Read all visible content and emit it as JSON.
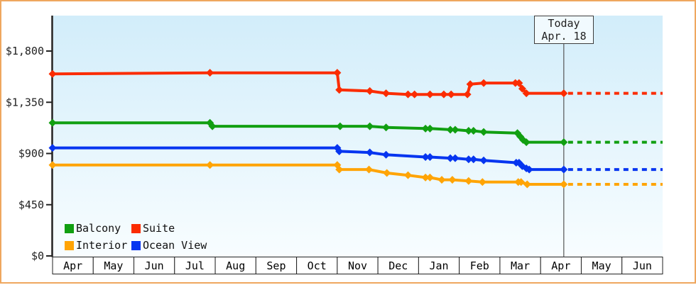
{
  "window": {
    "frame_border_color": "#efa75f"
  },
  "today_flag": {
    "line1": "Today",
    "line2": "Apr. 18"
  },
  "legend": {
    "items": [
      {
        "label": "Balcony",
        "color": "#119f11"
      },
      {
        "label": "Suite",
        "color": "#fb2c01"
      },
      {
        "label": "Interior",
        "color": "#ffa405"
      },
      {
        "label": "Ocean View",
        "color": "#0635f0"
      }
    ]
  },
  "chart_data": {
    "type": "line",
    "description": "Cruise cabin price history by category with dashed projection after today marker",
    "grid": false,
    "legend_position": "bottom-left inside plot",
    "colors": {
      "plot_bg_top": "#d2edfa",
      "plot_bg_bottom": "#f8fdff",
      "axis": "#222222",
      "today_line": "#555555",
      "month_band_bg": "#ffffff",
      "month_band_border": "#222222",
      "tick_text": "#222222"
    },
    "x_axis": {
      "tick_labels": [
        "Apr",
        "May",
        "Jun",
        "Jul",
        "Aug",
        "Sep",
        "Oct",
        "Nov",
        "Dec",
        "Jan",
        "Feb",
        "Mar",
        "Apr",
        "May",
        "Jun"
      ],
      "months_shown": 15
    },
    "y_axis": {
      "tick_labels": [
        "$0",
        "$450",
        "$900",
        "$1,350",
        "$1,800"
      ],
      "tick_values": [
        0,
        450,
        900,
        1350,
        1800
      ],
      "ylim": [
        0,
        2110
      ],
      "unit": "USD"
    },
    "today": {
      "label": "Apr. 18",
      "t": 12.57
    },
    "projection_end_t": 15,
    "series": [
      {
        "name": "Suite",
        "color": "#fb2c01",
        "today_price": 1429,
        "points": [
          {
            "t": 0,
            "date": "Apr 1",
            "price": 1599
          },
          {
            "t": 3.87,
            "date": "Jul 27",
            "price": 1609
          },
          {
            "t": 7.0,
            "date": "Nov 1",
            "price": 1609
          },
          {
            "t": 7.05,
            "date": "Nov 2",
            "price": 1459
          },
          {
            "t": 7.8,
            "date": "Nov 25",
            "price": 1449
          },
          {
            "t": 8.2,
            "date": "Dec 7",
            "price": 1429
          },
          {
            "t": 8.74,
            "date": "Dec 23",
            "price": 1419
          },
          {
            "t": 8.9,
            "date": "Dec 28",
            "price": 1419
          },
          {
            "t": 9.28,
            "date": "Jan 9",
            "price": 1419
          },
          {
            "t": 9.62,
            "date": "Jan 19",
            "price": 1419
          },
          {
            "t": 9.8,
            "date": "Jan 25",
            "price": 1419
          },
          {
            "t": 10.2,
            "date": "Feb 7",
            "price": 1419
          },
          {
            "t": 10.27,
            "date": "Feb 9",
            "price": 1509
          },
          {
            "t": 10.6,
            "date": "Feb 19",
            "price": 1519
          },
          {
            "t": 11.38,
            "date": "Mar 12",
            "price": 1519
          },
          {
            "t": 11.47,
            "date": "Mar 15",
            "price": 1519
          },
          {
            "t": 11.55,
            "date": "Mar 17",
            "price": 1469
          },
          {
            "t": 11.65,
            "date": "Mar 20",
            "price": 1429
          },
          {
            "t": 12.57,
            "date": "Apr 18",
            "price": 1429
          }
        ]
      },
      {
        "name": "Balcony",
        "color": "#119f11",
        "today_price": 999,
        "points": [
          {
            "t": 0,
            "date": "Apr 1",
            "price": 1169
          },
          {
            "t": 3.87,
            "date": "Jul 27",
            "price": 1169
          },
          {
            "t": 3.93,
            "date": "Jul 29",
            "price": 1139
          },
          {
            "t": 7.07,
            "date": "Nov 2",
            "price": 1139
          },
          {
            "t": 7.8,
            "date": "Nov 25",
            "price": 1139
          },
          {
            "t": 8.2,
            "date": "Dec 7",
            "price": 1129
          },
          {
            "t": 9.17,
            "date": "Jan 6",
            "price": 1119
          },
          {
            "t": 9.28,
            "date": "Jan 9",
            "price": 1119
          },
          {
            "t": 9.78,
            "date": "Jan 24",
            "price": 1109
          },
          {
            "t": 9.9,
            "date": "Jan 28",
            "price": 1109
          },
          {
            "t": 10.23,
            "date": "Feb 8",
            "price": 1099
          },
          {
            "t": 10.35,
            "date": "Feb 11",
            "price": 1099
          },
          {
            "t": 10.6,
            "date": "Feb 19",
            "price": 1089
          },
          {
            "t": 11.43,
            "date": "Mar 14",
            "price": 1079
          },
          {
            "t": 11.5,
            "date": "Mar 16",
            "price": 1049
          },
          {
            "t": 11.57,
            "date": "Mar 18",
            "price": 1019
          },
          {
            "t": 11.65,
            "date": "Mar 20",
            "price": 999
          },
          {
            "t": 12.57,
            "date": "Apr 18",
            "price": 999
          }
        ]
      },
      {
        "name": "Ocean View",
        "color": "#0635f0",
        "today_price": 759,
        "points": [
          {
            "t": 0,
            "date": "Apr 1",
            "price": 949
          },
          {
            "t": 7.0,
            "date": "Nov 1",
            "price": 949
          },
          {
            "t": 7.05,
            "date": "Nov 2",
            "price": 919
          },
          {
            "t": 7.8,
            "date": "Nov 25",
            "price": 909
          },
          {
            "t": 8.2,
            "date": "Dec 7",
            "price": 889
          },
          {
            "t": 9.17,
            "date": "Jan 6",
            "price": 869
          },
          {
            "t": 9.28,
            "date": "Jan 9",
            "price": 869
          },
          {
            "t": 9.78,
            "date": "Jan 24",
            "price": 859
          },
          {
            "t": 9.9,
            "date": "Jan 28",
            "price": 859
          },
          {
            "t": 10.23,
            "date": "Feb 8",
            "price": 849
          },
          {
            "t": 10.35,
            "date": "Feb 11",
            "price": 849
          },
          {
            "t": 10.6,
            "date": "Feb 19",
            "price": 839
          },
          {
            "t": 11.4,
            "date": "Mar 13",
            "price": 819
          },
          {
            "t": 11.47,
            "date": "Mar 15",
            "price": 819
          },
          {
            "t": 11.55,
            "date": "Mar 17",
            "price": 789
          },
          {
            "t": 11.65,
            "date": "Mar 20",
            "price": 769
          },
          {
            "t": 11.72,
            "date": "Mar 22",
            "price": 759
          },
          {
            "t": 12.57,
            "date": "Apr 18",
            "price": 759
          }
        ]
      },
      {
        "name": "Interior",
        "color": "#ffa405",
        "today_price": 629,
        "points": [
          {
            "t": 0,
            "date": "Apr 1",
            "price": 799
          },
          {
            "t": 3.87,
            "date": "Jul 27",
            "price": 799
          },
          {
            "t": 7.0,
            "date": "Nov 1",
            "price": 799
          },
          {
            "t": 7.05,
            "date": "Nov 2",
            "price": 759
          },
          {
            "t": 7.78,
            "date": "Nov 25",
            "price": 759
          },
          {
            "t": 8.22,
            "date": "Dec 7",
            "price": 729
          },
          {
            "t": 8.74,
            "date": "Dec 23",
            "price": 709
          },
          {
            "t": 9.17,
            "date": "Jan 6",
            "price": 689
          },
          {
            "t": 9.28,
            "date": "Jan 9",
            "price": 689
          },
          {
            "t": 9.57,
            "date": "Jan 18",
            "price": 669
          },
          {
            "t": 9.83,
            "date": "Jan 26",
            "price": 669
          },
          {
            "t": 10.23,
            "date": "Feb 8",
            "price": 659
          },
          {
            "t": 10.57,
            "date": "Feb 18",
            "price": 649
          },
          {
            "t": 11.45,
            "date": "Mar 15",
            "price": 649
          },
          {
            "t": 11.52,
            "date": "Mar 17",
            "price": 649
          },
          {
            "t": 11.67,
            "date": "Mar 20",
            "price": 629
          },
          {
            "t": 12.57,
            "date": "Apr 18",
            "price": 629
          }
        ]
      }
    ]
  }
}
